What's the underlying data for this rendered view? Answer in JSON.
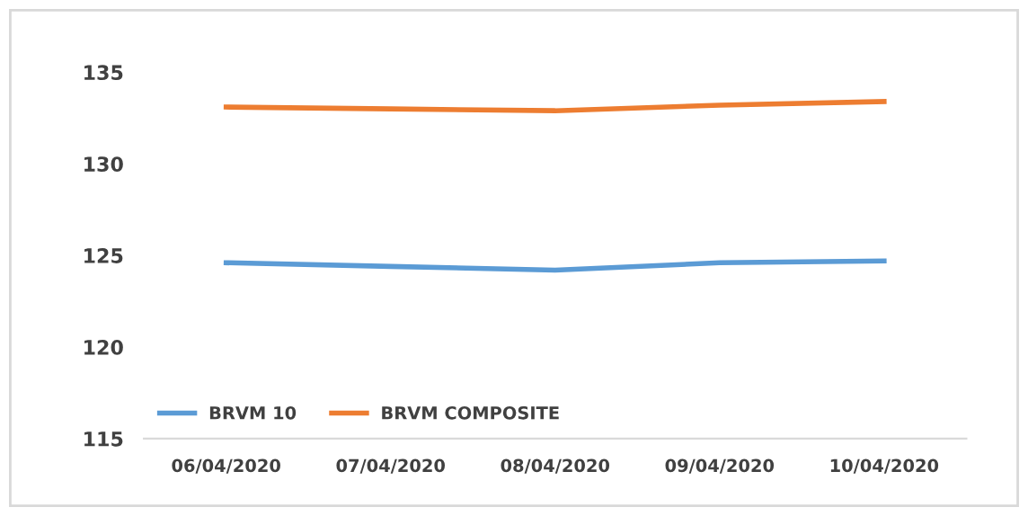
{
  "chart_data": {
    "type": "line",
    "categories": [
      "06/04/2020",
      "07/04/2020",
      "08/04/2020",
      "09/04/2020",
      "10/04/2020"
    ],
    "series": [
      {
        "name": "BRVM 10",
        "color": "#5b9bd5",
        "values": [
          124.6,
          124.4,
          124.2,
          124.6,
          124.7
        ]
      },
      {
        "name": "BRVM COMPOSITE",
        "color": "#ed7d31",
        "values": [
          133.1,
          133.0,
          132.9,
          133.2,
          133.4
        ]
      }
    ],
    "ylim": [
      115,
      135
    ],
    "yticks": [
      115,
      120,
      125,
      130,
      135
    ],
    "grid": false,
    "legend": "bottom left",
    "marker": "none",
    "line_style": "solid"
  }
}
